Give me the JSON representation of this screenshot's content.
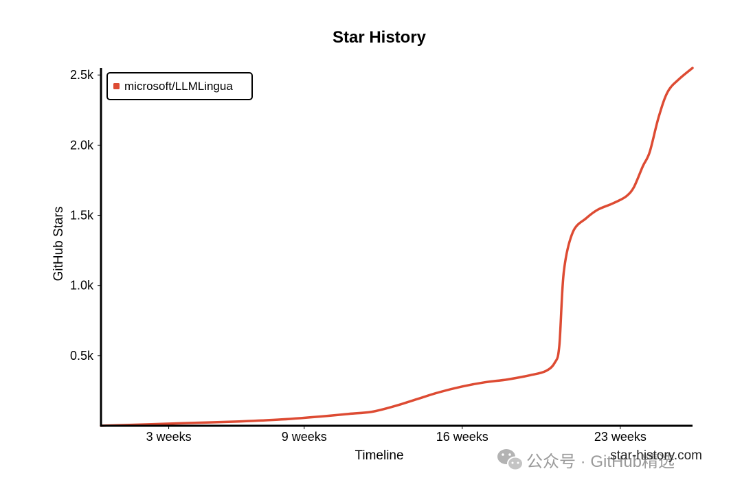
{
  "chart_data": {
    "type": "line",
    "title": "Star History",
    "xlabel": "Timeline",
    "ylabel": "GitHub Stars",
    "x_unit": "weeks",
    "xlim": [
      0,
      26.2
    ],
    "ylim": [
      0,
      2550
    ],
    "x_ticks": [
      3,
      9,
      16,
      23
    ],
    "x_tick_labels": [
      "3 weeks",
      "9 weeks",
      "16 weeks",
      "23 weeks"
    ],
    "y_ticks": [
      500,
      1000,
      1500,
      2000,
      2500
    ],
    "y_tick_labels": [
      "0.5k",
      "1.0k",
      "1.5k",
      "2.0k",
      "2.5k"
    ],
    "grid": false,
    "legend_position": "top-left",
    "series": [
      {
        "name": "microsoft/LLMLingua",
        "color": "#dd4b33",
        "x": [
          0,
          2,
          4,
          6,
          8,
          10,
          11,
          12,
          13,
          14,
          15,
          16,
          17,
          18,
          19,
          19.7,
          20.1,
          20.3,
          20.5,
          20.9,
          21.5,
          22,
          22.6,
          23,
          23.3,
          23.6,
          24,
          24.3,
          24.7,
          25.1,
          25.6,
          26.2
        ],
        "y": [
          0,
          10,
          20,
          30,
          45,
          70,
          85,
          100,
          140,
          190,
          240,
          280,
          310,
          330,
          360,
          390,
          450,
          570,
          1100,
          1380,
          1480,
          1540,
          1580,
          1610,
          1640,
          1700,
          1850,
          1950,
          2200,
          2380,
          2470,
          2550
        ]
      }
    ]
  },
  "watermark": {
    "site": "star-history.com",
    "account": "公众号 · GitHub精选"
  }
}
